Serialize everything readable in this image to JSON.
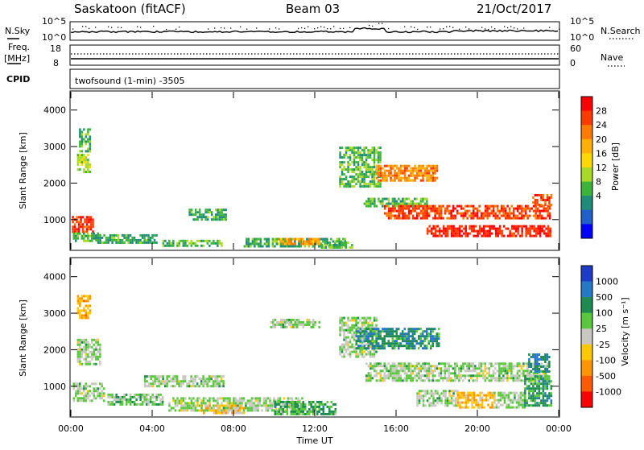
{
  "header": {
    "station": "Saskatoon (fitACF)",
    "beam": "Beam 03",
    "date": "21/Oct/2017"
  },
  "panels": {
    "nsky_label": "N.Sky",
    "nsearch_label": "N.Search",
    "nsky_ticks": [
      "10^5",
      "10^0"
    ],
    "nsearch_ticks": [
      "10^5",
      "10^0"
    ],
    "freq_label": "Freq.",
    "freq_unit": "[MHz]",
    "freq_ticks": [
      "18",
      "8"
    ],
    "nave_label": "Nave",
    "nave_ticks": [
      "60",
      "0"
    ],
    "cpid_label": "CPID",
    "cpid_text": "twofsound (1-min) -3505"
  },
  "chart_data": [
    {
      "type": "heatmap",
      "parameter": "Power",
      "ylabel": "Slant Range [km]",
      "xlabel": "",
      "colorbar_label": "Power [dB]",
      "colorbar_ticks": [
        "28",
        "24",
        "20",
        "16",
        "12",
        "8",
        "4"
      ],
      "colorbar_colors": [
        "#ff0000",
        "#ff3a00",
        "#ff7a00",
        "#ffb000",
        "#ffd800",
        "#a8d828",
        "#3cb43c",
        "#1e8c78",
        "#2060c8",
        "#0000ff"
      ],
      "x_ticks": [
        "00:00",
        "04:00",
        "08:00",
        "12:00",
        "16:00",
        "20:00",
        "00:00"
      ],
      "y_ticks": [
        "1000",
        "2000",
        "3000",
        "4000"
      ],
      "xlim": [
        0,
        24
      ],
      "ylim": [
        180,
        4500
      ],
      "regions": [
        {
          "t0": 0.05,
          "t1": 1.1,
          "r0": 700,
          "r1": 1100,
          "level": 0.92
        },
        {
          "t0": 0.1,
          "t1": 1.3,
          "r0": 450,
          "r1": 650,
          "level": 0.35
        },
        {
          "t0": 0.3,
          "t1": 0.9,
          "r0": 2300,
          "r1": 2800,
          "level": 0.45
        },
        {
          "t0": 0.4,
          "t1": 0.9,
          "r0": 2900,
          "r1": 3500,
          "level": 0.3
        },
        {
          "t0": 1.2,
          "t1": 4.2,
          "r0": 400,
          "r1": 600,
          "level": 0.3
        },
        {
          "t0": 4.5,
          "t1": 7.5,
          "r0": 300,
          "r1": 450,
          "level": 0.35
        },
        {
          "t0": 5.8,
          "t1": 7.6,
          "r0": 1000,
          "r1": 1300,
          "level": 0.3
        },
        {
          "t0": 8.5,
          "t1": 13.5,
          "r0": 300,
          "r1": 500,
          "level": 0.3
        },
        {
          "t0": 10.2,
          "t1": 12.2,
          "r0": 350,
          "r1": 500,
          "level": 0.7
        },
        {
          "t0": 12.3,
          "t1": 13.8,
          "r0": 250,
          "r1": 400,
          "level": 0.35
        },
        {
          "t0": 13.2,
          "t1": 15.2,
          "r0": 1900,
          "r1": 3000,
          "level": 0.35
        },
        {
          "t0": 14.4,
          "t1": 17.5,
          "r0": 1400,
          "r1": 1600,
          "level": 0.35
        },
        {
          "t0": 15.0,
          "t1": 18.0,
          "r0": 2100,
          "r1": 2500,
          "level": 0.75
        },
        {
          "t0": 15.4,
          "t1": 23.6,
          "r0": 1050,
          "r1": 1400,
          "level": 0.88
        },
        {
          "t0": 17.5,
          "t1": 23.6,
          "r0": 550,
          "r1": 850,
          "level": 0.95
        },
        {
          "t0": 22.7,
          "t1": 23.6,
          "r0": 1400,
          "r1": 1700,
          "level": 0.85
        }
      ]
    },
    {
      "type": "heatmap",
      "parameter": "Velocity",
      "ylabel": "Slant Range [km]",
      "xlabel": "Time UT",
      "colorbar_label": "Velocity [m s⁻¹]",
      "colorbar_ticks": [
        "1000",
        "500",
        "100",
        "25",
        "-25",
        "-100",
        "-500",
        "-1000"
      ],
      "colorbar_colors": [
        "#1e3cc8",
        "#2878c8",
        "#1e8c50",
        "#5ac83c",
        "#c8c8c0",
        "#ffc800",
        "#ff9600",
        "#ff5a00",
        "#ff0000"
      ],
      "x_ticks": [
        "00:00",
        "04:00",
        "08:00",
        "12:00",
        "16:00",
        "20:00",
        "00:00"
      ],
      "y_ticks": [
        "1000",
        "2000",
        "3000",
        "4000"
      ],
      "xlim": [
        0,
        24
      ],
      "ylim": [
        180,
        4500
      ],
      "regions": [
        {
          "t0": 0.1,
          "t1": 1.6,
          "r0": 600,
          "r1": 1100,
          "level": 0.56
        },
        {
          "t0": 0.3,
          "t1": 0.9,
          "r0": 2900,
          "r1": 3500,
          "level": 0.3
        },
        {
          "t0": 0.3,
          "t1": 1.4,
          "r0": 1600,
          "r1": 2300,
          "level": 0.56
        },
        {
          "t0": 1.8,
          "t1": 4.5,
          "r0": 500,
          "r1": 800,
          "level": 0.62
        },
        {
          "t0": 3.6,
          "t1": 7.5,
          "r0": 1000,
          "r1": 1300,
          "level": 0.56
        },
        {
          "t0": 4.8,
          "t1": 11.5,
          "r0": 350,
          "r1": 700,
          "level": 0.56
        },
        {
          "t0": 6.4,
          "t1": 8.5,
          "r0": 300,
          "r1": 500,
          "level": 0.35
        },
        {
          "t0": 9.8,
          "t1": 12.2,
          "r0": 2650,
          "r1": 2850,
          "level": 0.56
        },
        {
          "t0": 10.0,
          "t1": 13.0,
          "r0": 250,
          "r1": 600,
          "level": 0.68
        },
        {
          "t0": 13.2,
          "t1": 15.0,
          "r0": 1800,
          "r1": 2900,
          "level": 0.56
        },
        {
          "t0": 14.0,
          "t1": 18.1,
          "r0": 2050,
          "r1": 2600,
          "level": 0.78
        },
        {
          "t0": 14.5,
          "t1": 23.5,
          "r0": 1150,
          "r1": 1650,
          "level": 0.56
        },
        {
          "t0": 17.0,
          "t1": 19.0,
          "r0": 450,
          "r1": 900,
          "level": 0.56
        },
        {
          "t0": 19.0,
          "t1": 20.8,
          "r0": 450,
          "r1": 850,
          "level": 0.35
        },
        {
          "t0": 20.8,
          "t1": 22.3,
          "r0": 450,
          "r1": 850,
          "level": 0.56
        },
        {
          "t0": 22.3,
          "t1": 23.6,
          "r0": 450,
          "r1": 1300,
          "level": 0.72
        },
        {
          "t0": 22.5,
          "t1": 23.5,
          "r0": 1400,
          "r1": 1900,
          "level": 0.8
        }
      ]
    }
  ]
}
